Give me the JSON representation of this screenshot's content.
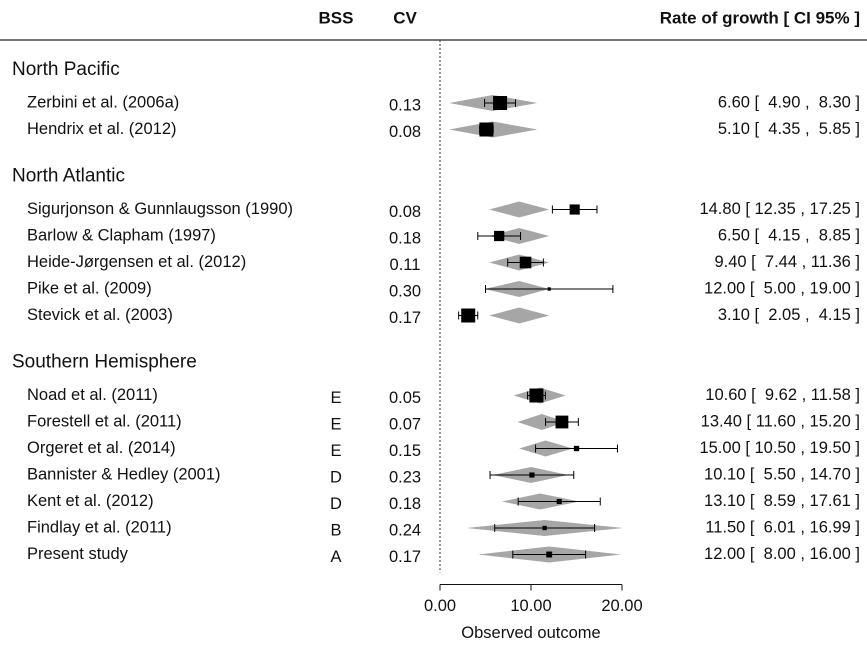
{
  "header": {
    "bss": "BSS",
    "cv": "CV",
    "rate": "Rate of growth [ CI 95% ]"
  },
  "chart_data": {
    "type": "forest",
    "x_label": "Observed outcome",
    "xlim": [
      0,
      20
    ],
    "xticks": [
      {
        "value": 0,
        "label": "0.00"
      },
      {
        "value": 10,
        "label": "10.00"
      },
      {
        "value": 20,
        "label": "20.00"
      }
    ],
    "reference_line": 0,
    "diamond_color": "#a6a6a6",
    "marker_color": "#000000",
    "groups": [
      {
        "name": "North Pacific",
        "studies": [
          {
            "name": "Zerbini et al. (2006a)",
            "cv": "0.13",
            "estimate": 6.6,
            "lower": 4.9,
            "upper": 8.3,
            "rate_label": "6.60 [  4.90 ,  8.30 ]",
            "diamond": [
              1.0,
              5.8,
              10.7
            ]
          },
          {
            "name": "Hendrix et al. (2012)",
            "cv": "0.08",
            "estimate": 5.1,
            "lower": 4.35,
            "upper": 5.85,
            "rate_label": "5.10 [  4.35 ,  5.85 ]",
            "diamond": [
              1.0,
              5.8,
              10.7
            ]
          }
        ]
      },
      {
        "name": "North Atlantic",
        "studies": [
          {
            "name": "Sigurjonson & Gunnlaugsson (1990)",
            "cv": "0.08",
            "estimate": 14.8,
            "lower": 12.35,
            "upper": 17.25,
            "rate_label": "14.80 [ 12.35 , 17.25 ]",
            "diamond": [
              5.4,
              8.7,
              12.0
            ]
          },
          {
            "name": "Barlow & Clapham (1997)",
            "cv": "0.18",
            "estimate": 6.5,
            "lower": 4.15,
            "upper": 8.85,
            "rate_label": "6.50 [  4.15 ,  8.85 ]",
            "diamond": [
              5.4,
              8.7,
              12.0
            ]
          },
          {
            "name": "Heide-Jørgensen et al. (2012)",
            "cv": "0.11",
            "estimate": 9.4,
            "lower": 7.44,
            "upper": 11.36,
            "rate_label": "9.40 [  7.44 , 11.36 ]",
            "diamond": [
              5.4,
              8.7,
              12.0
            ]
          },
          {
            "name": "Pike et al. (2009)",
            "cv": "0.30",
            "estimate": 12.0,
            "lower": 5.0,
            "upper": 19.0,
            "rate_label": "12.00 [  5.00 , 19.00 ]",
            "diamond": [
              4.9,
              8.7,
              12.0
            ]
          },
          {
            "name": "Stevick et al. (2003)",
            "cv": "0.17",
            "estimate": 3.1,
            "lower": 2.05,
            "upper": 4.15,
            "rate_label": "3.10 [  2.05 ,  4.15 ]",
            "diamond": [
              5.4,
              8.7,
              12.0
            ]
          }
        ]
      },
      {
        "name": "Southern Hemisphere",
        "studies": [
          {
            "name": "Noad et al. (2011)",
            "bss": "E",
            "cv": "0.05",
            "estimate": 10.6,
            "lower": 9.62,
            "upper": 11.58,
            "rate_label": "10.60 [  9.62 , 11.58 ]",
            "diamond": [
              8.1,
              11.0,
              13.8
            ]
          },
          {
            "name": "Forestell et al. (2011)",
            "bss": "E",
            "cv": "0.07",
            "estimate": 13.4,
            "lower": 11.6,
            "upper": 15.2,
            "rate_label": "13.40 [ 11.60 , 15.20 ]",
            "diamond": [
              8.5,
              11.2,
              13.8
            ]
          },
          {
            "name": "Orgeret et al. (2014)",
            "bss": "E",
            "cv": "0.15",
            "estimate": 15.0,
            "lower": 10.5,
            "upper": 19.5,
            "rate_label": "15.00 [ 10.50 , 19.50 ]",
            "diamond": [
              8.7,
              11.6,
              14.6
            ]
          },
          {
            "name": "Bannister & Hedley (2001)",
            "bss": "D",
            "cv": "0.23",
            "estimate": 10.1,
            "lower": 5.5,
            "upper": 14.7,
            "rate_label": "10.10 [  5.50 , 14.70 ]",
            "diamond": [
              5.8,
              10.0,
              14.1
            ]
          },
          {
            "name": "Kent et al. (2012)",
            "bss": "D",
            "cv": "0.18",
            "estimate": 13.1,
            "lower": 8.59,
            "upper": 17.61,
            "rate_label": "13.10 [  8.59 , 17.61 ]",
            "diamond": [
              6.8,
              11.0,
              15.3
            ]
          },
          {
            "name": "Findlay et al. (2011)",
            "bss": "B",
            "cv": "0.24",
            "estimate": 11.5,
            "lower": 6.01,
            "upper": 16.99,
            "rate_label": "11.50 [  6.01 , 16.99 ]",
            "diamond": [
              2.9,
              11.5,
              20.1
            ]
          },
          {
            "name": "Present study",
            "bss": "A",
            "cv": "0.17",
            "estimate": 12.0,
            "lower": 8.0,
            "upper": 16.0,
            "rate_label": "12.00 [  8.00 , 16.00 ]",
            "diamond": [
              4.2,
              12.0,
              19.9
            ]
          }
        ]
      }
    ]
  }
}
